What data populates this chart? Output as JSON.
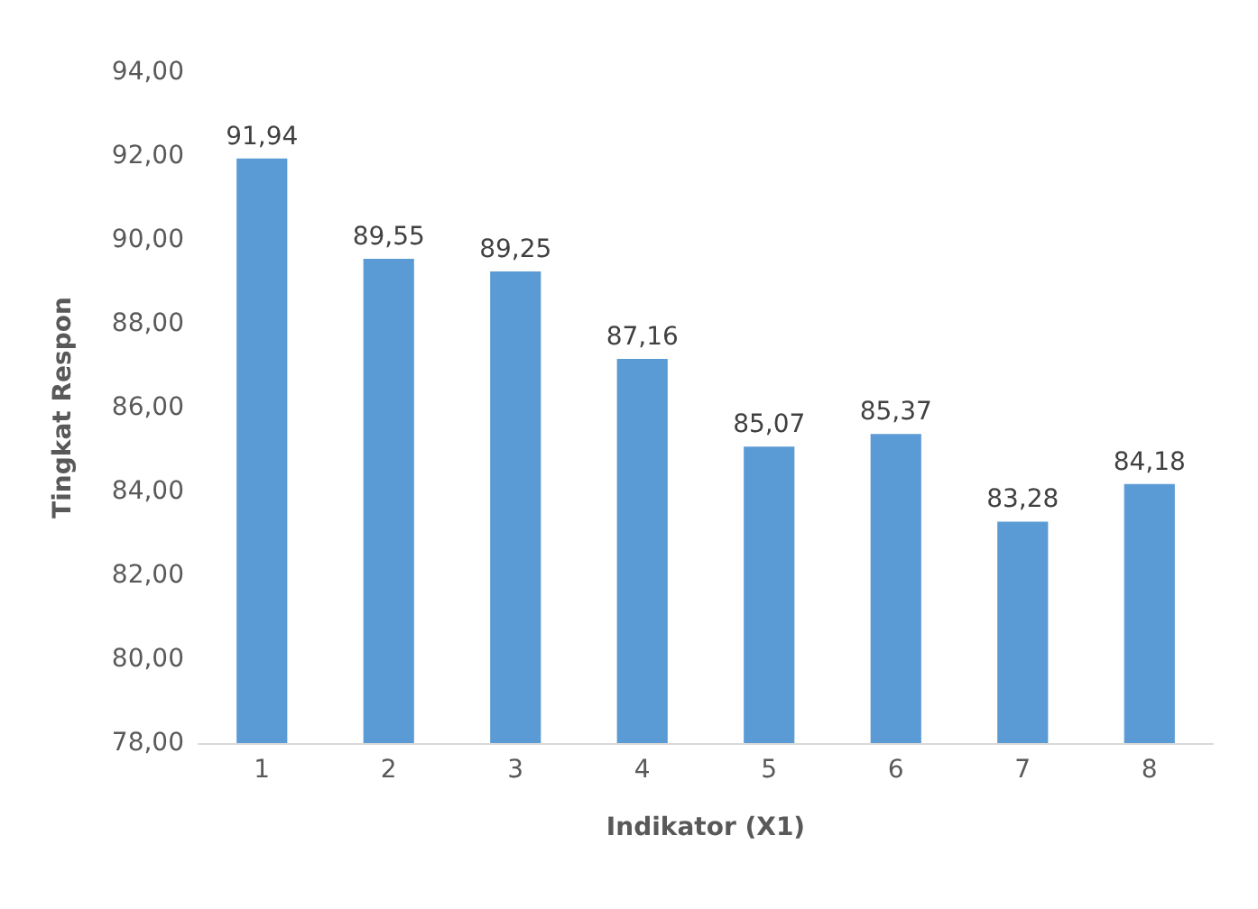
{
  "chart_data": {
    "type": "bar",
    "xlabel": "Indikator (X1)",
    "ylabel": "Tingkat Respon",
    "categories": [
      "1",
      "2",
      "3",
      "4",
      "5",
      "6",
      "7",
      "8"
    ],
    "values": [
      91.94,
      89.55,
      89.25,
      87.16,
      85.07,
      85.37,
      83.28,
      84.18
    ],
    "value_labels": [
      "91,94",
      "89,55",
      "89,25",
      "87,16",
      "85,07",
      "85,37",
      "83,28",
      "84,18"
    ],
    "color": "#5b9bd5",
    "ylim": [
      78,
      94
    ],
    "yticks": [
      {
        "value": 78,
        "label": "78,00"
      },
      {
        "value": 80,
        "label": "80,00"
      },
      {
        "value": 82,
        "label": "82,00"
      },
      {
        "value": 84,
        "label": "84,00"
      },
      {
        "value": 86,
        "label": "86,00"
      },
      {
        "value": 88,
        "label": "88,00"
      },
      {
        "value": 90,
        "label": "90,00"
      },
      {
        "value": 92,
        "label": "92,00"
      },
      {
        "value": 94,
        "label": "94,00"
      }
    ],
    "grid": false
  }
}
